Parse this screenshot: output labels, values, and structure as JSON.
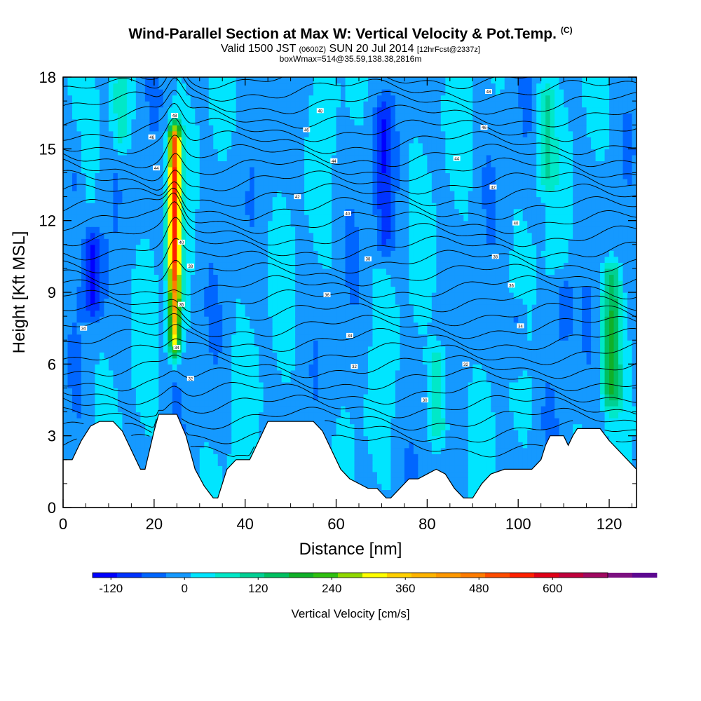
{
  "header": {
    "title": "Wind-Parallel Section at Max W: Vertical Velocity & Pot.Temp.",
    "title_tag": "(C)",
    "valid_prefix": "Valid 1500 JST",
    "valid_utc": "(0600Z)",
    "valid_date": "SUN 20 Jul 2014",
    "forecast_tag": "[12hrFcst@2337z]",
    "box_info": "boxWmax=514@35.59,138.38,2816m"
  },
  "chart_data": {
    "type": "heatmap",
    "xlabel": "Distance [nm]",
    "ylabel": "Height [Kft MSL]",
    "xlim": [
      0,
      126
    ],
    "ylim": [
      0,
      18
    ],
    "xticks": [
      "0",
      "20",
      "40",
      "60",
      "80",
      "100",
      "120"
    ],
    "yticks": [
      "0",
      "3",
      "6",
      "9",
      "12",
      "15",
      "18"
    ],
    "colorbar": {
      "label": "Vertical Velocity [cm/s]",
      "min": -150,
      "max": 690,
      "step": 40,
      "tick_values": [
        -120,
        0,
        120,
        240,
        360,
        480,
        600
      ],
      "tick_labels": [
        "-120",
        "0",
        "120",
        "240",
        "360",
        "480",
        "600"
      ],
      "colors": [
        "#0000ff",
        "#0033ff",
        "#0066ff",
        "#1599ff",
        "#00e5ff",
        "#00e8c8",
        "#00d094",
        "#00c060",
        "#10b028",
        "#30c010",
        "#90d800",
        "#ffff00",
        "#ffd000",
        "#ffb400",
        "#ff9800",
        "#ff7c00",
        "#ff4c00",
        "#ff2000",
        "#e00018",
        "#c0003c",
        "#a00860",
        "#7c1080",
        "#5c0890"
      ]
    },
    "terrain_kft": [
      [
        0,
        2.0
      ],
      [
        2,
        2.0
      ],
      [
        4,
        2.8
      ],
      [
        6,
        3.4
      ],
      [
        8,
        3.6
      ],
      [
        11,
        3.6
      ],
      [
        13,
        3.2
      ],
      [
        15,
        2.4
      ],
      [
        17,
        1.6
      ],
      [
        18,
        1.6
      ],
      [
        20,
        3.2
      ],
      [
        21,
        3.9
      ],
      [
        25,
        3.9
      ],
      [
        27,
        3.0
      ],
      [
        29,
        1.6
      ],
      [
        31,
        0.9
      ],
      [
        33,
        0.4
      ],
      [
        34,
        0.4
      ],
      [
        36,
        1.6
      ],
      [
        38,
        2.0
      ],
      [
        41,
        2.0
      ],
      [
        43,
        2.8
      ],
      [
        44,
        3.2
      ],
      [
        45,
        3.6
      ],
      [
        55,
        3.6
      ],
      [
        57,
        3.2
      ],
      [
        59,
        2.4
      ],
      [
        61,
        1.6
      ],
      [
        63,
        1.2
      ],
      [
        65,
        1.0
      ],
      [
        67,
        0.8
      ],
      [
        69,
        0.8
      ],
      [
        71,
        0.4
      ],
      [
        72,
        0.4
      ],
      [
        74,
        0.8
      ],
      [
        76,
        1.2
      ],
      [
        78,
        1.2
      ],
      [
        80,
        1.4
      ],
      [
        82,
        1.6
      ],
      [
        84,
        1.4
      ],
      [
        86,
        0.8
      ],
      [
        88,
        0.4
      ],
      [
        90,
        0.4
      ],
      [
        92,
        1.0
      ],
      [
        94,
        1.4
      ],
      [
        97,
        1.6
      ],
      [
        101,
        1.6
      ],
      [
        103,
        1.6
      ],
      [
        105,
        2.0
      ],
      [
        106,
        2.6
      ],
      [
        107,
        3.0
      ],
      [
        110,
        3.0
      ],
      [
        111,
        2.6
      ],
      [
        112,
        3.0
      ],
      [
        113,
        3.3
      ],
      [
        118,
        3.3
      ],
      [
        120,
        2.8
      ],
      [
        122,
        2.4
      ],
      [
        124,
        2.0
      ],
      [
        126,
        1.6
      ]
    ],
    "updrafts": [
      {
        "x": 24.5,
        "y_bottom": 4.2,
        "y_top": 18.0,
        "peak": 514
      },
      {
        "x": 120.5,
        "y_bottom": 3.4,
        "y_top": 11.0,
        "peak": 160
      },
      {
        "x": 82.5,
        "y_bottom": 2.6,
        "y_top": 7.0,
        "peak": 90
      },
      {
        "x": 106.0,
        "y_bottom": 13.0,
        "y_top": 18.0,
        "peak": 90
      },
      {
        "x": 12.5,
        "y_bottom": 15.0,
        "y_top": 18.0,
        "peak": 80
      }
    ],
    "downdrafts": [
      {
        "x": 6.5,
        "y_bottom": 8.0,
        "y_top": 11.5,
        "peak": -120
      },
      {
        "x": 70.5,
        "y_bottom": 9.5,
        "y_top": 18.0,
        "peak": -80
      },
      {
        "x": 99.5,
        "y_bottom": 5.5,
        "y_top": 8.5,
        "peak": -60
      },
      {
        "x": 110.0,
        "y_bottom": 7.0,
        "y_top": 9.5,
        "peak": -50
      },
      {
        "x": 2.5,
        "y_bottom": 13.0,
        "y_top": 16.0,
        "peak": -40
      }
    ],
    "theta_contour_labels": [
      {
        "x": 93.5,
        "y": 17.4,
        "text": "48"
      },
      {
        "x": 56.5,
        "y": 16.6,
        "text": "48"
      },
      {
        "x": 24.5,
        "y": 16.4,
        "text": "48"
      },
      {
        "x": 92.5,
        "y": 15.9,
        "text": "46"
      },
      {
        "x": 53.5,
        "y": 15.8,
        "text": "46"
      },
      {
        "x": 19.5,
        "y": 15.5,
        "text": "46"
      },
      {
        "x": 86.5,
        "y": 14.6,
        "text": "44"
      },
      {
        "x": 59.5,
        "y": 14.5,
        "text": "44"
      },
      {
        "x": 20.5,
        "y": 14.2,
        "text": "44"
      },
      {
        "x": 94.5,
        "y": 13.4,
        "text": "42"
      },
      {
        "x": 51.5,
        "y": 13.0,
        "text": "42"
      },
      {
        "x": 62.5,
        "y": 12.3,
        "text": "40"
      },
      {
        "x": 99.5,
        "y": 11.9,
        "text": "40"
      },
      {
        "x": 26.0,
        "y": 11.1,
        "text": "40"
      },
      {
        "x": 95.0,
        "y": 10.5,
        "text": "38"
      },
      {
        "x": 67.0,
        "y": 10.4,
        "text": "38"
      },
      {
        "x": 28.0,
        "y": 10.1,
        "text": "38"
      },
      {
        "x": 98.5,
        "y": 9.3,
        "text": "36"
      },
      {
        "x": 58.0,
        "y": 8.9,
        "text": "36"
      },
      {
        "x": 26.0,
        "y": 8.5,
        "text": "36"
      },
      {
        "x": 100.5,
        "y": 7.6,
        "text": "34"
      },
      {
        "x": 4.5,
        "y": 7.5,
        "text": "34"
      },
      {
        "x": 63.0,
        "y": 7.2,
        "text": "34"
      },
      {
        "x": 25.0,
        "y": 6.7,
        "text": "34"
      },
      {
        "x": 88.5,
        "y": 6.0,
        "text": "32"
      },
      {
        "x": 64.0,
        "y": 5.9,
        "text": "32"
      },
      {
        "x": 28.0,
        "y": 5.4,
        "text": "32"
      },
      {
        "x": 79.5,
        "y": 4.5,
        "text": "30"
      }
    ]
  }
}
